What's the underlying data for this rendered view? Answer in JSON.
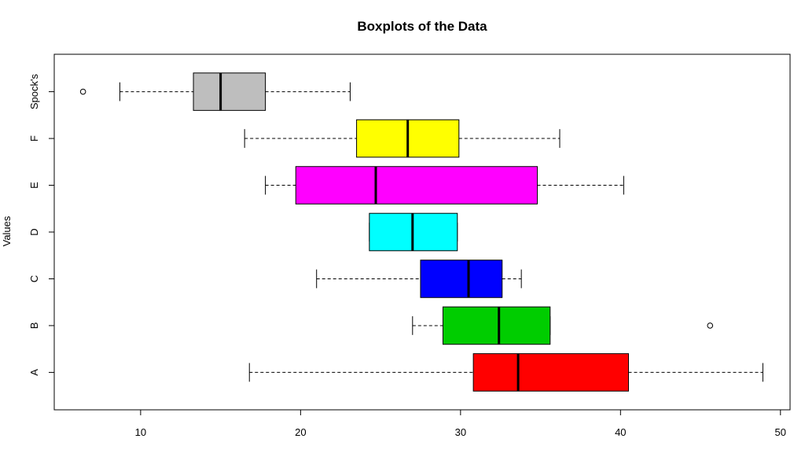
{
  "chart_data": {
    "type": "boxplot",
    "orientation": "horizontal",
    "title": "Boxplots of the Data",
    "xlabel": "",
    "ylabel": "Values",
    "xlim": [
      4.6,
      50.6
    ],
    "xticks": [
      10,
      20,
      30,
      40,
      50
    ],
    "grid": false,
    "categories": [
      "A",
      "B",
      "C",
      "D",
      "E",
      "F",
      "Spock's"
    ],
    "series": [
      {
        "category": "A",
        "color": "#ff0000",
        "whisker_low": 16.8,
        "q1": 30.8,
        "median": 33.6,
        "q3": 40.5,
        "whisker_high": 48.9,
        "outliers": []
      },
      {
        "category": "B",
        "color": "#00cd00",
        "whisker_low": 27.0,
        "q1": 28.9,
        "median": 32.4,
        "q3": 35.6,
        "whisker_high": 35.6,
        "outliers": [
          45.6
        ]
      },
      {
        "category": "C",
        "color": "#0000ff",
        "whisker_low": 21.0,
        "q1": 27.5,
        "median": 30.5,
        "q3": 32.6,
        "whisker_high": 33.8,
        "outliers": []
      },
      {
        "category": "D",
        "color": "#00ffff",
        "whisker_low": 24.3,
        "q1": 24.3,
        "median": 27.0,
        "q3": 29.8,
        "whisker_high": 29.8,
        "outliers": []
      },
      {
        "category": "E",
        "color": "#ff00ff",
        "whisker_low": 17.8,
        "q1": 19.7,
        "median": 24.7,
        "q3": 34.8,
        "whisker_high": 40.2,
        "outliers": []
      },
      {
        "category": "F",
        "color": "#ffff00",
        "whisker_low": 16.5,
        "q1": 23.5,
        "median": 26.7,
        "q3": 29.9,
        "whisker_high": 36.2,
        "outliers": []
      },
      {
        "category": "Spock's",
        "color": "#bebebe",
        "whisker_low": 8.7,
        "q1": 13.3,
        "median": 15.0,
        "q3": 17.8,
        "whisker_high": 23.1,
        "outliers": [
          6.4
        ]
      }
    ]
  }
}
